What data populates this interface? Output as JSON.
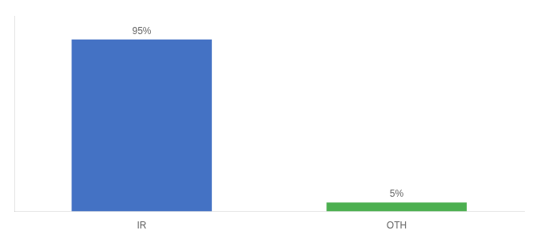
{
  "chart_data": {
    "type": "bar",
    "categories": [
      "IR",
      "OTH"
    ],
    "values": [
      95,
      5
    ],
    "value_labels": [
      "95%",
      "5%"
    ],
    "colors": [
      "#4472c4",
      "#4caf50"
    ],
    "ylim": [
      0,
      108
    ],
    "grid": false,
    "data_labels": true,
    "tick_labels": "x"
  }
}
